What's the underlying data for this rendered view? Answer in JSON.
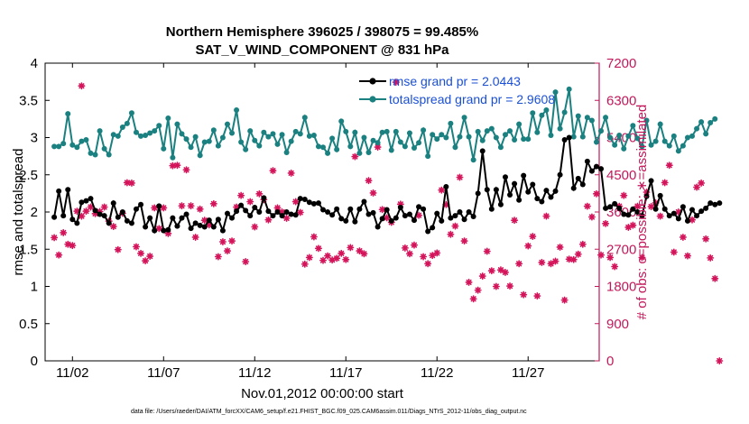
{
  "chart_data": {
    "type": "line",
    "title_line1": "Northern Hemisphere 396025 / 398075 = 99.485%",
    "title_line2": "SAT_V_WIND_COMPONENT @ 831 hPa",
    "xlabel": "Nov.01,2012 00:00:00 start",
    "ylabel_left": "rmse and totalspread",
    "ylabel_right": "# of obs: o=possible; ∗=assimilated",
    "footer": "data file: /Users/raeder/DAI/ATM_forcXX/CAM6_setup/f.e21.FHIST_BGC.f09_025.CAM6assim.011/Diags_NTrS_2012-11/obs_diag_output.nc",
    "xlim": [
      0.5,
      30.9
    ],
    "ylim_left": [
      0,
      4
    ],
    "ylim_right": [
      0,
      7200
    ],
    "x_ticks": [
      2,
      7,
      12,
      17,
      22,
      27
    ],
    "x_tick_labels": [
      "11/02",
      "11/07",
      "11/12",
      "11/17",
      "11/22",
      "11/27"
    ],
    "y_ticks_left": [
      0,
      0.5,
      1,
      1.5,
      2,
      2.5,
      3,
      3.5,
      4
    ],
    "y_tick_labels_left": [
      "0",
      "0.5",
      "1",
      "1.5",
      "2",
      "2.5",
      "3",
      "3.5",
      "4"
    ],
    "y_ticks_right": [
      0,
      900,
      1800,
      2700,
      3600,
      4500,
      5400,
      6300,
      7200
    ],
    "y_tick_labels_right": [
      "0",
      "900",
      "1800",
      "2700",
      "3600",
      "4500",
      "5400",
      "6300",
      "7200"
    ],
    "legend": [
      "rmse grand pr = 2.0443",
      "totalspread grand pr = 2.9608"
    ],
    "colors": {
      "rmse": "#000000",
      "totalspread": "#1a8080",
      "obs": "#d4145a",
      "legend_text": "#1a4fd6",
      "axis": "#000000",
      "right_axis": "#c2185b"
    },
    "x_start": 1.0,
    "x_step": 0.25,
    "series": [
      {
        "name": "rmse",
        "values": [
          1.93,
          2.28,
          1.95,
          2.3,
          1.9,
          1.85,
          2.13,
          2.15,
          2.18,
          2.02,
          1.97,
          1.95,
          1.85,
          2.12,
          1.93,
          2.0,
          1.88,
          1.85,
          2.04,
          2.1,
          1.8,
          1.92,
          1.75,
          2.08,
          1.75,
          1.76,
          1.92,
          1.81,
          1.92,
          1.97,
          1.78,
          1.85,
          1.82,
          1.8,
          1.89,
          1.8,
          1.9,
          1.75,
          1.98,
          1.92,
          2.01,
          2.09,
          2.02,
          1.95,
          2.06,
          2.0,
          2.19,
          2.01,
          1.95,
          2.0,
          1.95,
          2.0,
          1.97,
          1.96,
          2.18,
          2.17,
          2.13,
          2.11,
          2.12,
          2.03,
          2.0,
          1.96,
          2.04,
          1.91,
          1.88,
          2.04,
          1.87,
          2.04,
          2.14,
          1.97,
          1.99,
          1.8,
          1.91,
          2.03,
          1.88,
          1.92,
          2.06,
          1.95,
          1.97,
          1.89,
          2.07,
          2.04,
          1.74,
          1.79,
          1.98,
          1.88,
          2.34,
          1.92,
          1.95,
          2.0,
          1.9,
          2.0,
          1.94,
          2.25,
          2.82,
          2.3,
          2.04,
          2.3,
          2.1,
          2.47,
          2.23,
          2.38,
          2.16,
          2.49,
          2.27,
          2.37,
          2.18,
          2.14,
          2.29,
          2.2,
          2.28,
          2.5,
          2.97,
          3.0,
          2.32,
          2.45,
          2.37,
          2.68,
          2.55,
          2.61,
          2.58,
          2.05,
          2.07,
          2.11,
          2.05,
          1.97,
          1.96,
          2.04,
          2.0,
          1.95,
          2.21,
          2.42,
          2.04,
          2.22,
          2.04,
          1.95,
          1.98,
          1.91,
          2.07,
          1.88,
          2.03,
          1.95,
          2.01,
          2.05,
          2.12,
          2.1,
          2.12
        ]
      },
      {
        "name": "totalspread",
        "values": [
          2.88,
          2.88,
          2.92,
          3.32,
          2.9,
          2.87,
          2.95,
          2.97,
          2.79,
          2.77,
          3.09,
          2.85,
          2.77,
          3.04,
          3.02,
          3.14,
          3.19,
          3.33,
          3.07,
          3.02,
          3.03,
          3.06,
          3.09,
          3.16,
          2.85,
          3.26,
          2.73,
          3.18,
          3.05,
          2.98,
          2.87,
          3.01,
          2.76,
          2.94,
          2.95,
          3.1,
          2.89,
          3.0,
          3.18,
          3.06,
          3.37,
          2.94,
          2.84,
          3.09,
          2.96,
          2.89,
          3.07,
          3.01,
          3.05,
          2.91,
          3.04,
          2.8,
          2.95,
          3.08,
          3.05,
          3.27,
          3.02,
          3.03,
          2.88,
          2.87,
          2.79,
          2.99,
          2.84,
          3.22,
          3.08,
          2.88,
          3.07,
          2.79,
          3.0,
          2.8,
          2.96,
          2.93,
          3.07,
          3.08,
          2.83,
          3.08,
          2.94,
          2.88,
          3.06,
          2.86,
          2.93,
          3.1,
          2.75,
          3.04,
          2.98,
          3.04,
          3.0,
          3.19,
          2.87,
          3.01,
          3.27,
          3.01,
          2.7,
          3.08,
          2.96,
          3.09,
          3.12,
          3.0,
          2.87,
          3.04,
          3.09,
          2.97,
          3.18,
          2.98,
          2.98,
          3.33,
          3.07,
          3.3,
          3.37,
          3.03,
          3.61,
          3.12,
          3.34,
          3.65,
          3.01,
          3.29,
          3.01,
          3.27,
          3.23,
          2.94,
          3.09,
          3.27,
          3.0,
          2.9,
          3.03,
          2.85,
          3.02,
          3.16,
          2.99,
          2.88,
          3.23,
          2.9,
          2.95,
          3.18,
          2.95,
          2.89,
          3.02,
          2.82,
          2.89,
          3.0,
          3.02,
          3.12,
          3.21,
          3.05,
          3.2,
          3.25
        ]
      },
      {
        "name": "obs_assimilated",
        "values": [
          2980,
          2560,
          3100,
          2820,
          2790,
          3620,
          3500,
          3620,
          3720,
          3560,
          3610,
          3720,
          3380,
          3250,
          2690,
          3570,
          4310,
          4300,
          2760,
          2600,
          2420,
          2530,
          3700,
          3200,
          3700,
          3080,
          4720,
          4730,
          3750,
          4620,
          3750,
          2990,
          3670,
          3400,
          3290,
          3800,
          2520,
          2880,
          2660,
          2900,
          3720,
          4000,
          2400,
          3850,
          3240,
          4040,
          3900,
          3410,
          4600,
          3700,
          3600,
          3450,
          4540,
          3850,
          3590,
          2340,
          2500,
          3000,
          2720,
          2430,
          2540,
          2440,
          2480,
          2600,
          2450,
          2740,
          4940,
          2660,
          2590,
          4360,
          4060,
          5170,
          3660,
          3460,
          3350,
          6740,
          3790,
          2730,
          2590,
          2800,
          3520,
          2520,
          2350,
          2550,
          2610,
          4130,
          3780,
          3060,
          3260,
          4440,
          2900,
          1900,
          1500,
          1710,
          2050,
          2650,
          2180,
          1800,
          2200,
          2140,
          1810,
          3400,
          2350,
          1600,
          2780,
          3010,
          1570,
          2380,
          3500,
          2350,
          2410,
          2750,
          1470,
          2460,
          2450,
          2580,
          2820,
          3740,
          3480,
          4040,
          2560,
          3320,
          2500,
          2280,
          3740,
          4000,
          3230,
          3280,
          3740,
          2500,
          4080,
          3730,
          3820,
          3500,
          4310,
          4730,
          2630,
          3600,
          2990,
          2540,
          3410,
          4200,
          4300,
          2950,
          2490,
          1990,
          0
        ]
      }
    ],
    "obs_possible_extra": [
      {
        "x": 2.5,
        "value": 6650
      }
    ]
  }
}
